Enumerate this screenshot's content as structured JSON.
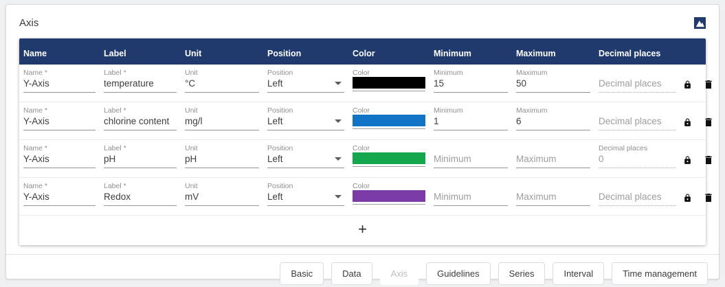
{
  "page": {
    "title": "Axis"
  },
  "theme": {
    "header_bg": "#203a6d"
  },
  "icons": {
    "corner": "image-icon",
    "lock": "lock-icon",
    "delete": "trash-icon",
    "dropdown": "chevron-down-icon",
    "add": "plus-icon"
  },
  "table": {
    "columns": [
      "Name",
      "Label",
      "Unit",
      "Position",
      "Color",
      "Minimum",
      "Maximum",
      "Decimal places"
    ],
    "field_labels": {
      "name": "Name *",
      "label": "Label *",
      "unit": "Unit",
      "position": "Position",
      "color": "Color",
      "minimum": "Minimum",
      "maximum": "Maximum",
      "decimal": "Decimal places"
    },
    "placeholders": {
      "minimum": "Minimum",
      "maximum": "Maximum",
      "decimal": "Decimal places"
    },
    "rows": [
      {
        "name": "Y-Axis",
        "label": "temperature",
        "unit": "°C",
        "position": "Left",
        "color": "#000000",
        "minimum": "15",
        "maximum": "50",
        "decimal": ""
      },
      {
        "name": "Y-Axis",
        "label": "chlorine content",
        "unit": "mg/l",
        "position": "Left",
        "color": "#1173c4",
        "minimum": "1",
        "maximum": "6",
        "decimal": ""
      },
      {
        "name": "Y-Axis",
        "label": "pH",
        "unit": "pH",
        "position": "Left",
        "color": "#15a74e",
        "minimum": "",
        "maximum": "",
        "decimal": "0"
      },
      {
        "name": "Y-Axis",
        "label": "Redox",
        "unit": "mV",
        "position": "Left",
        "color": "#7a3ba6",
        "minimum": "",
        "maximum": "",
        "decimal": ""
      }
    ],
    "add_label": "+"
  },
  "footer": {
    "buttons": [
      {
        "label": "Basic",
        "disabled": false
      },
      {
        "label": "Data",
        "disabled": false
      },
      {
        "label": "Axis",
        "disabled": true
      },
      {
        "label": "Guidelines",
        "disabled": false
      },
      {
        "label": "Series",
        "disabled": false
      },
      {
        "label": "Interval",
        "disabled": false
      },
      {
        "label": "Time management",
        "disabled": false
      }
    ]
  }
}
